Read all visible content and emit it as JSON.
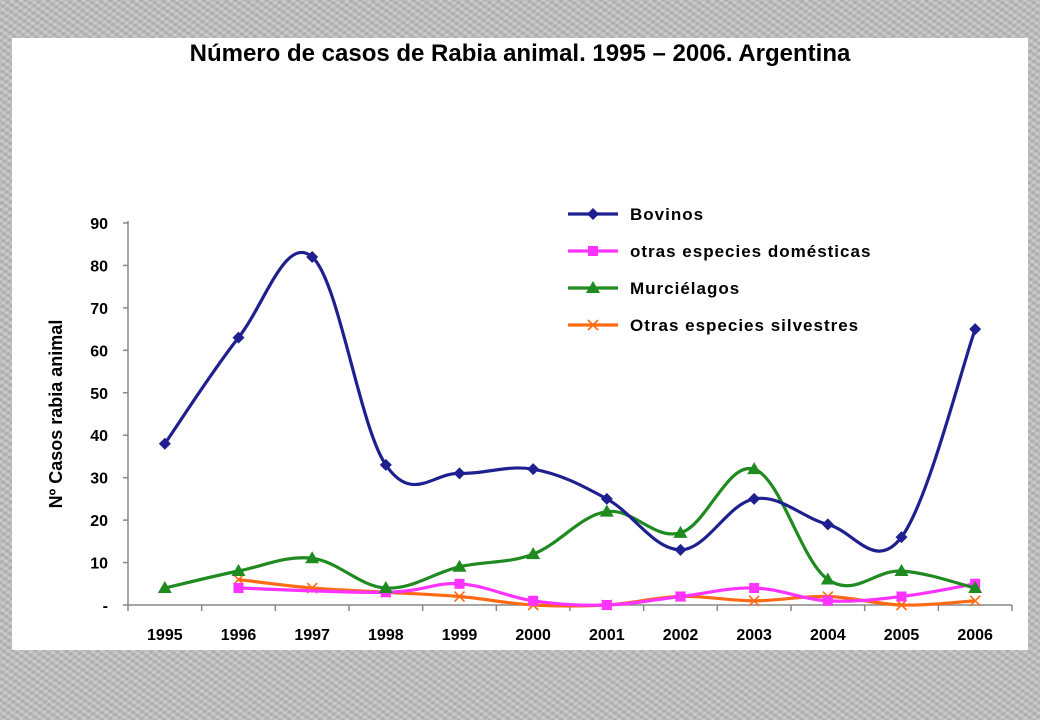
{
  "chart_data": {
    "type": "line",
    "title": "Número de casos de  Rabia animal. 1995 – 2006. Argentina",
    "ylabel": "Nº Casos rabia animal",
    "xlabel": "",
    "ylim": [
      0,
      90
    ],
    "y_ticks": [
      {
        "value": 0,
        "label": "-"
      },
      {
        "value": 10,
        "label": "10"
      },
      {
        "value": 20,
        "label": "20"
      },
      {
        "value": 30,
        "label": "30"
      },
      {
        "value": 40,
        "label": "40"
      },
      {
        "value": 50,
        "label": "50"
      },
      {
        "value": 60,
        "label": "60"
      },
      {
        "value": 70,
        "label": "70"
      },
      {
        "value": 80,
        "label": "80"
      },
      {
        "value": 90,
        "label": "90"
      }
    ],
    "categories": [
      "1995",
      "1996",
      "1997",
      "1998",
      "1999",
      "2000",
      "2001",
      "2002",
      "2003",
      "2004",
      "2005",
      "2006"
    ],
    "legend_position": "top-right",
    "grid": false,
    "series": [
      {
        "name": "Bovinos",
        "color": "#1f1f8f",
        "marker": "diamond",
        "values": [
          38,
          63,
          82,
          33,
          31,
          32,
          25,
          13,
          25,
          19,
          16,
          65
        ]
      },
      {
        "name": "otras especies domésticas",
        "color": "#ff33ff",
        "marker": "square",
        "values": [
          null,
          4,
          null,
          3,
          5,
          1,
          0,
          2,
          4,
          1,
          2,
          5
        ]
      },
      {
        "name": "Murciélagos",
        "color": "#1f8a1f",
        "marker": "triangle",
        "values": [
          4,
          8,
          11,
          4,
          9,
          12,
          22,
          17,
          32,
          6,
          8,
          4
        ]
      },
      {
        "name": "Otras especies silvestres",
        "color": "#ff6a13",
        "marker": "x",
        "values": [
          null,
          6,
          4,
          3,
          2,
          0,
          0,
          2,
          1,
          2,
          0,
          1
        ]
      }
    ]
  }
}
